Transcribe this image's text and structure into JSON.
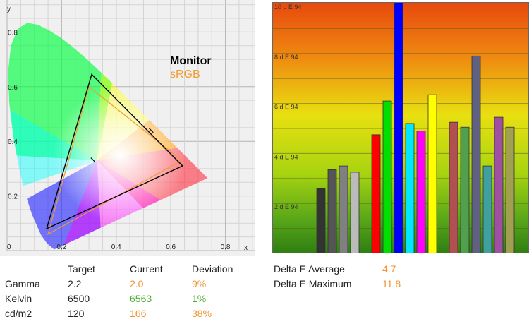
{
  "colors": {
    "monitor": "#000000",
    "srgb": "#f29a2e",
    "current_green": "#4caf2e",
    "current_orange": "#f0922e"
  },
  "chart_data": [
    {
      "type": "scatter",
      "title": "",
      "xlabel": "x",
      "ylabel": "y",
      "xlim": [
        0,
        0.88
      ],
      "ylim": [
        0,
        0.88
      ],
      "x_ticks": [
        "0.2",
        "0.4",
        "0.6",
        "0.8"
      ],
      "y_ticks": [
        "0.2",
        "0.4",
        "0.6",
        "0.8"
      ],
      "origin_label": "0",
      "grid": true,
      "legend": {
        "placement": "top-right",
        "entries": [
          "Monitor",
          "sRGB"
        ]
      },
      "series": [
        {
          "name": "Monitor",
          "points": [
            [
              0.31,
              0.645
            ],
            [
              0.643,
              0.31
            ],
            [
              0.145,
              0.08
            ]
          ]
        },
        {
          "name": "sRGB",
          "points": [
            [
              0.3,
              0.6
            ],
            [
              0.64,
              0.33
            ],
            [
              0.15,
              0.06
            ]
          ]
        }
      ],
      "white_point_marks": [
        [
          0.315,
          0.332
        ],
        [
          0.528,
          0.44
        ]
      ],
      "locus": [
        [
          0.1741,
          0.005
        ],
        [
          0.1738,
          0.0049
        ],
        [
          0.1733,
          0.0048
        ],
        [
          0.1726,
          0.0048
        ],
        [
          0.1714,
          0.0051
        ],
        [
          0.1689,
          0.0069
        ],
        [
          0.1644,
          0.0109
        ],
        [
          0.1566,
          0.0177
        ],
        [
          0.144,
          0.0297
        ],
        [
          0.1241,
          0.0578
        ],
        [
          0.0913,
          0.1327
        ],
        [
          0.0687,
          0.2007
        ],
        [
          0.0454,
          0.295
        ],
        [
          0.0235,
          0.4127
        ],
        [
          0.0082,
          0.5384
        ],
        [
          0.0039,
          0.6548
        ],
        [
          0.0139,
          0.7502
        ],
        [
          0.0389,
          0.812
        ],
        [
          0.0743,
          0.8338
        ],
        [
          0.1142,
          0.8262
        ],
        [
          0.1547,
          0.8059
        ],
        [
          0.1929,
          0.7816
        ],
        [
          0.2296,
          0.7543
        ],
        [
          0.2658,
          0.7243
        ],
        [
          0.3016,
          0.6923
        ],
        [
          0.3373,
          0.6589
        ],
        [
          0.3731,
          0.6245
        ],
        [
          0.4087,
          0.5896
        ],
        [
          0.4441,
          0.5547
        ],
        [
          0.4788,
          0.5202
        ],
        [
          0.5125,
          0.4866
        ],
        [
          0.5448,
          0.4544
        ],
        [
          0.5752,
          0.4242
        ],
        [
          0.6029,
          0.3965
        ],
        [
          0.627,
          0.3725
        ],
        [
          0.6482,
          0.3514
        ],
        [
          0.6658,
          0.334
        ],
        [
          0.6801,
          0.3197
        ],
        [
          0.6915,
          0.3083
        ],
        [
          0.7006,
          0.2993
        ],
        [
          0.7079,
          0.292
        ],
        [
          0.714,
          0.2859
        ],
        [
          0.719,
          0.2809
        ],
        [
          0.723,
          0.277
        ],
        [
          0.726,
          0.274
        ],
        [
          0.7283,
          0.2717
        ],
        [
          0.73,
          0.27
        ],
        [
          0.7311,
          0.2689
        ],
        [
          0.732,
          0.268
        ],
        [
          0.7327,
          0.2673
        ],
        [
          0.7334,
          0.2666
        ],
        [
          0.734,
          0.266
        ],
        [
          0.7344,
          0.2656
        ],
        [
          0.7346,
          0.2654
        ],
        [
          0.7347,
          0.2653
        ]
      ]
    },
    {
      "type": "bar",
      "title": "",
      "xlabel": "",
      "ylabel": "",
      "ylim": [
        0,
        10
      ],
      "y_ticks": [
        "2 d E 94",
        "4 d E 94",
        "6 d E 94",
        "8 d E 94",
        "10 d E 94"
      ],
      "grid": true,
      "groups": [
        [
          {
            "value": 2.6,
            "color": "#333333"
          },
          {
            "value": 3.35,
            "color": "#555555"
          },
          {
            "value": 3.5,
            "color": "#808080"
          },
          {
            "value": 3.25,
            "color": "#bbbbbb"
          }
        ],
        [
          {
            "value": 4.75,
            "color": "#ff0000"
          },
          {
            "value": 6.1,
            "color": "#00e000"
          },
          {
            "value": 11.8,
            "color": "#0000ff"
          },
          {
            "value": 5.2,
            "color": "#00e8ff"
          },
          {
            "value": 4.9,
            "color": "#ff00ff"
          },
          {
            "value": 6.35,
            "color": "#ffff00"
          }
        ],
        [
          {
            "value": 5.25,
            "color": "#b05050"
          },
          {
            "value": 5.05,
            "color": "#50a050"
          },
          {
            "value": 7.9,
            "color": "#606080"
          },
          {
            "value": 3.5,
            "color": "#40a0a0"
          },
          {
            "value": 5.45,
            "color": "#a050a0"
          },
          {
            "value": 5.05,
            "color": "#a0a050"
          }
        ]
      ]
    }
  ],
  "table": {
    "headers": [
      "Target",
      "Current",
      "Deviation"
    ],
    "rows": [
      {
        "label": "Gamma",
        "target": "2.2",
        "current": "2.0",
        "deviation": "9%",
        "current_color": "orange"
      },
      {
        "label": "Kelvin",
        "target": "6500",
        "current": "6563",
        "deviation": "1%",
        "current_color": "green"
      },
      {
        "label": "cd/m2",
        "target": "120",
        "current": "166",
        "deviation": "38%",
        "current_color": "orange"
      }
    ]
  },
  "delta_e": [
    {
      "label": "Delta E Average",
      "value": "4.7"
    },
    {
      "label": "Delta E Maximum",
      "value": "11.8"
    }
  ]
}
